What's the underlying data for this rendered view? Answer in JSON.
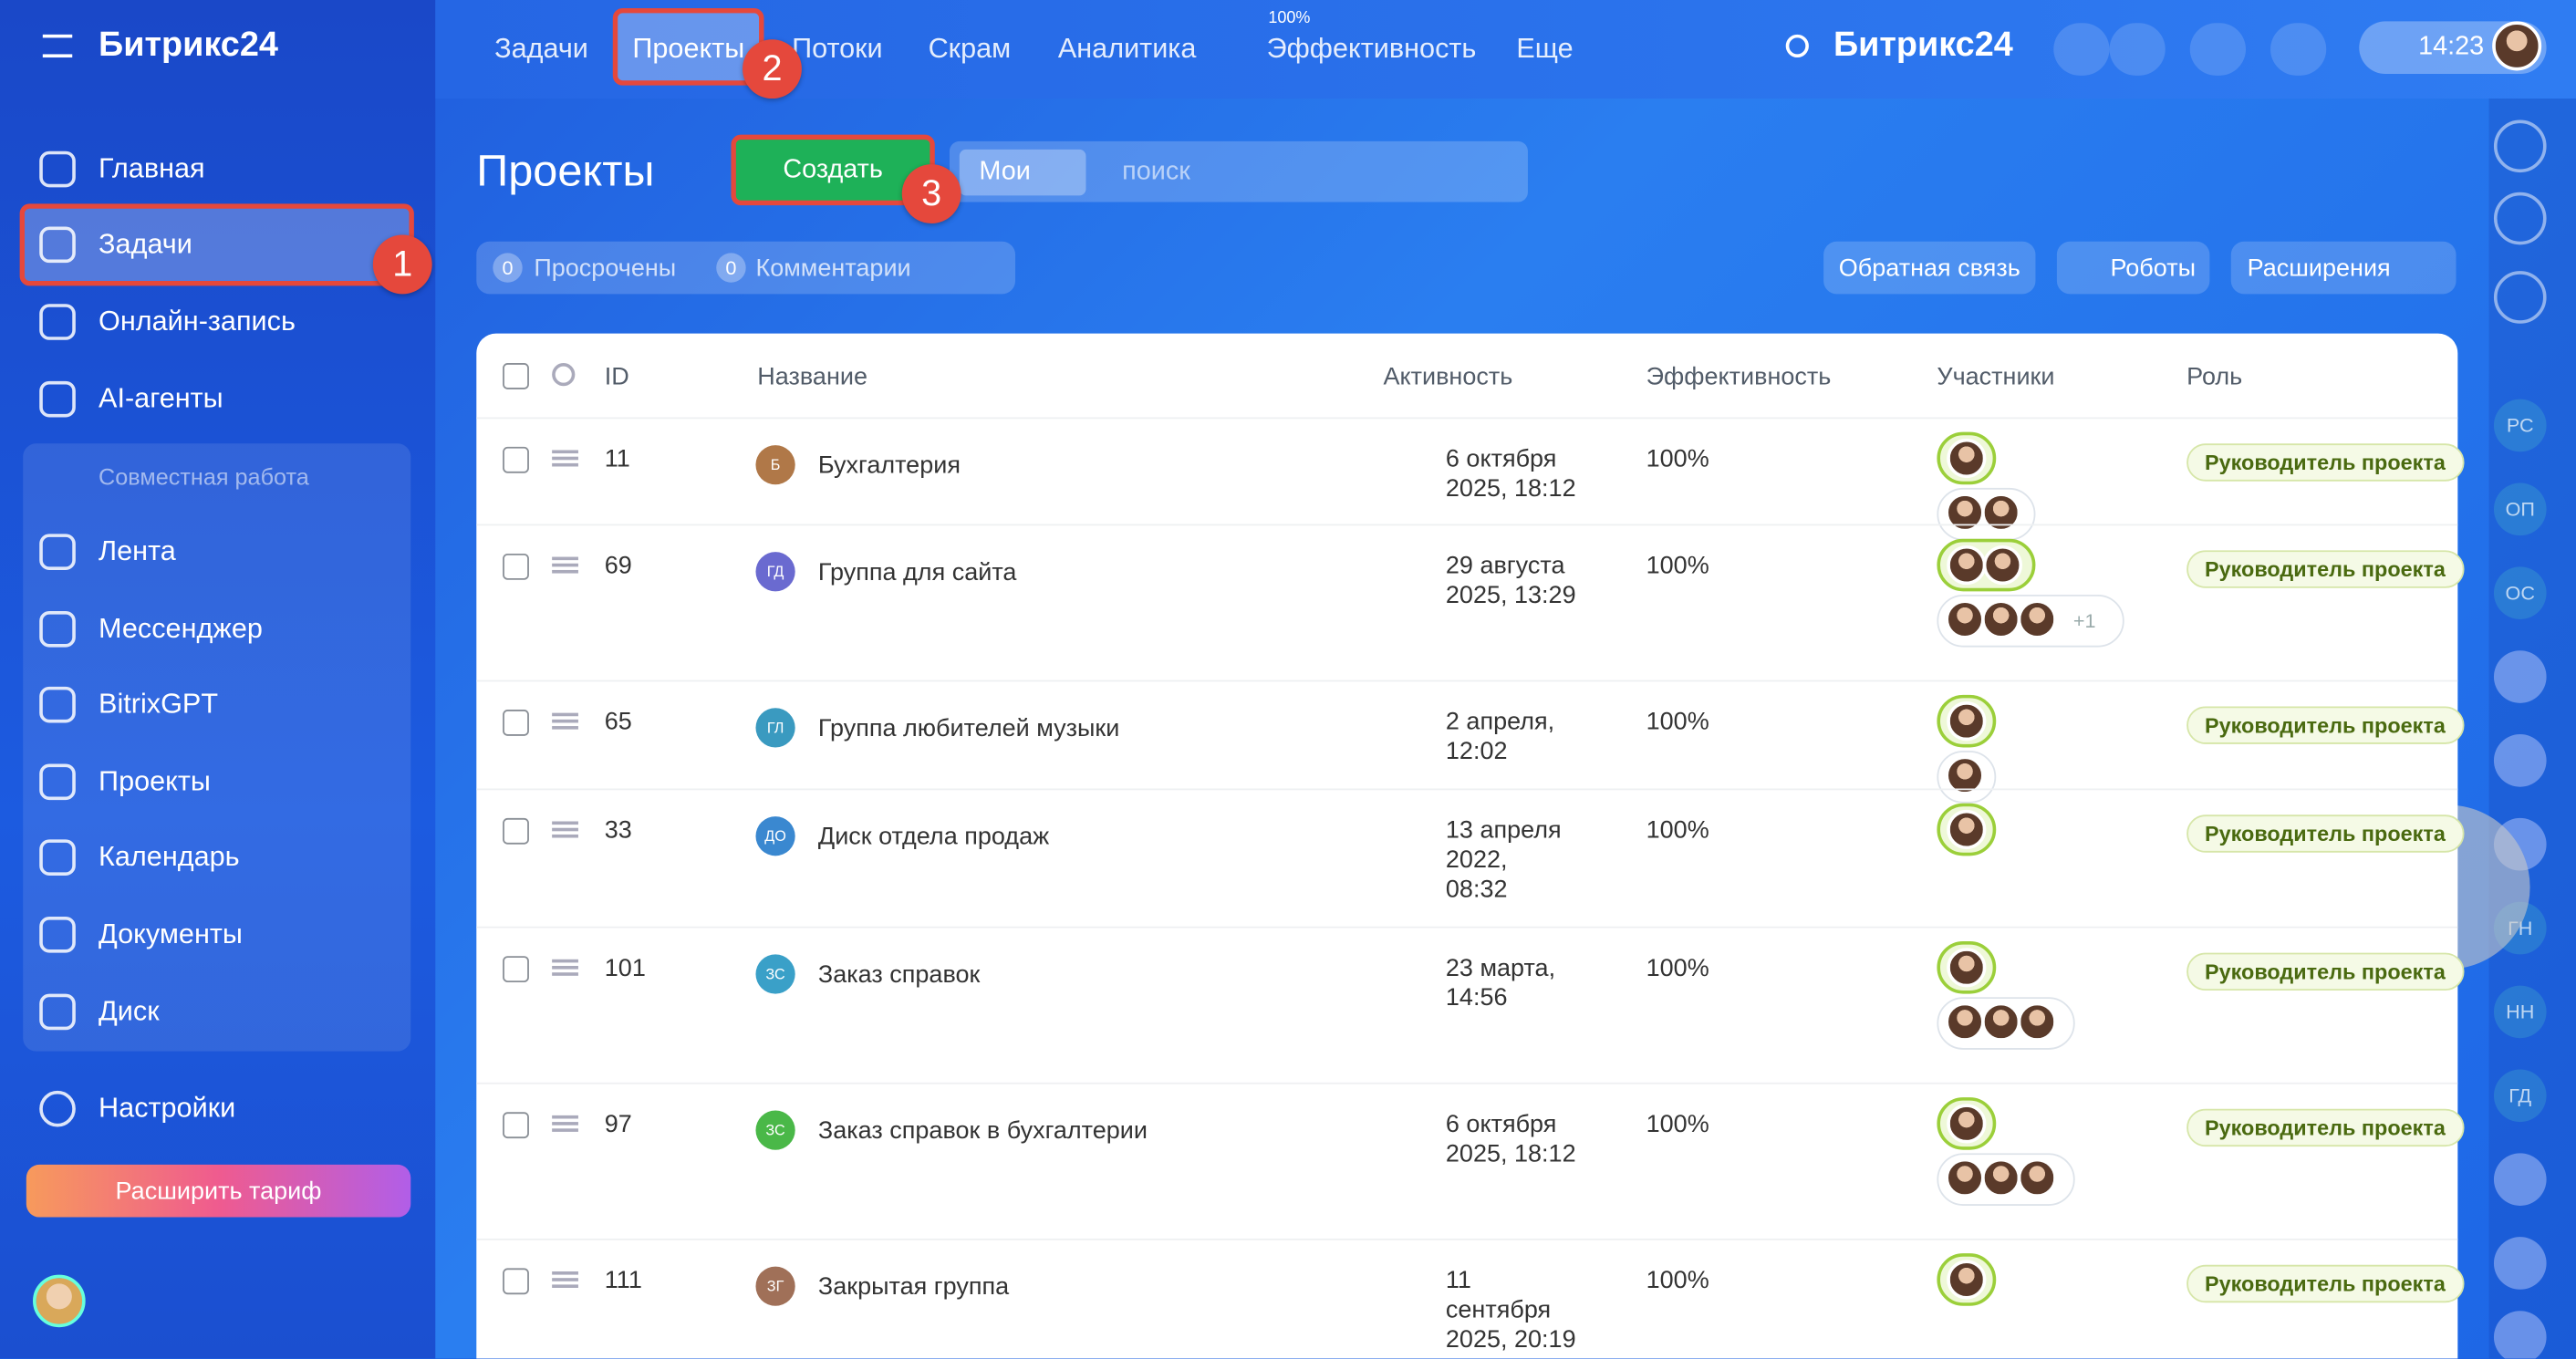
{
  "sidebar": {
    "logo": "Битрикс24",
    "items": [
      "Главная",
      "Задачи",
      "Онлайн-запись",
      "AI-агенты"
    ],
    "group": "Совместная работа",
    "group_items": [
      "Лента",
      "Мессенджер",
      "BitrixGPT",
      "Проекты",
      "Календарь",
      "Документы",
      "Диск"
    ],
    "settings": "Настройки",
    "upgrade": "Расширить тариф"
  },
  "topnav": {
    "items": [
      "Задачи",
      "Проекты",
      "Потоки",
      "Скрам",
      "Аналитика",
      "Эффективность",
      "Еще"
    ],
    "efficiency_badge": "100%",
    "brand": "Битрикс24",
    "time": "14:23"
  },
  "page": {
    "title": "Проекты",
    "create": "Создать",
    "filter_tag": "Мои",
    "search_placeholder": "поиск",
    "counters": [
      {
        "count": "0",
        "label": "Просрочены"
      },
      {
        "count": "0",
        "label": "Комментарии"
      }
    ],
    "buttons": [
      "Обратная связь",
      "Роботы",
      "Расширения"
    ]
  },
  "table": {
    "headers": [
      "ID",
      "Название",
      "Активность",
      "Эффективность",
      "Участники",
      "Роль"
    ],
    "rows": [
      {
        "id": "11",
        "icon": "Б",
        "name": "Бухгалтерия",
        "activity": [
          "6 октября",
          "2025, 18:12"
        ],
        "efficiency": "100%",
        "role": "Руководитель проекта"
      },
      {
        "id": "69",
        "icon": "ГД",
        "name": "Группа для сайта",
        "activity": [
          "29 августа",
          "2025, 13:29"
        ],
        "efficiency": "100%",
        "more": "+1",
        "role": "Руководитель проекта"
      },
      {
        "id": "65",
        "icon": "ГЛ",
        "name": "Группа любителей музыки",
        "activity": [
          "2 апреля,",
          "12:02"
        ],
        "efficiency": "100%",
        "role": "Руководитель проекта"
      },
      {
        "id": "33",
        "icon": "ДО",
        "name": "Диск отдела продаж",
        "activity": [
          "13 апреля",
          "2022,",
          "08:32"
        ],
        "efficiency": "100%",
        "role": "Руководитель проекта"
      },
      {
        "id": "101",
        "icon": "ЗС",
        "name": "Заказ справок",
        "activity": [
          "23 марта,",
          "14:56"
        ],
        "efficiency": "100%",
        "role": "Руководитель проекта"
      },
      {
        "id": "97",
        "icon": "ЗС",
        "name": "Заказ справок в бухгалтерии",
        "activity": [
          "6 октября",
          "2025, 18:12"
        ],
        "efficiency": "100%",
        "role": "Руководитель проекта"
      },
      {
        "id": "111",
        "icon": "ЗГ",
        "name": "Закрытая группа",
        "activity": [
          "11",
          "сентября",
          "2025, 20:19"
        ],
        "efficiency": "100%",
        "role": "Руководитель проекта"
      }
    ]
  },
  "annotations": [
    "1",
    "2",
    "3"
  ],
  "right_rail": [
    "РС",
    "ОП",
    "ОС",
    "ГН",
    "НН",
    "ГД"
  ]
}
